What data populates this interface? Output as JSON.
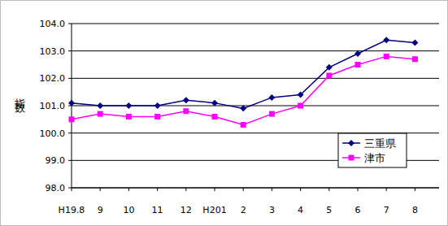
{
  "chart_data": {
    "type": "line",
    "y_label": "指数",
    "categories": [
      "H19.8",
      "9",
      "10",
      "11",
      "12",
      "H201",
      "2",
      "3",
      "4",
      "5",
      "6",
      "7",
      "8"
    ],
    "series": [
      {
        "name": "三重県",
        "color": "#000080",
        "marker": "diamond",
        "values": [
          101.1,
          101.0,
          101.0,
          101.0,
          101.2,
          101.1,
          100.9,
          101.3,
          101.4,
          102.4,
          102.9,
          103.4,
          103.3
        ]
      },
      {
        "name": "津市",
        "color": "#ff00ff",
        "marker": "square",
        "values": [
          100.5,
          100.7,
          100.6,
          100.6,
          100.8,
          100.6,
          100.3,
          100.7,
          101.0,
          102.1,
          102.5,
          102.8,
          102.7
        ]
      }
    ],
    "ylim": [
      98,
      104
    ],
    "yticks": [
      {
        "value": 98,
        "label": "98.0"
      },
      {
        "value": 99,
        "label": "99.0"
      },
      {
        "value": 100,
        "label": "100.0"
      },
      {
        "value": 101,
        "label": "101.0"
      },
      {
        "value": 102,
        "label": "102.0"
      },
      {
        "value": 103,
        "label": "103.0"
      },
      {
        "value": 104,
        "label": "104.0"
      }
    ],
    "grid": true,
    "legend": "lower right"
  }
}
